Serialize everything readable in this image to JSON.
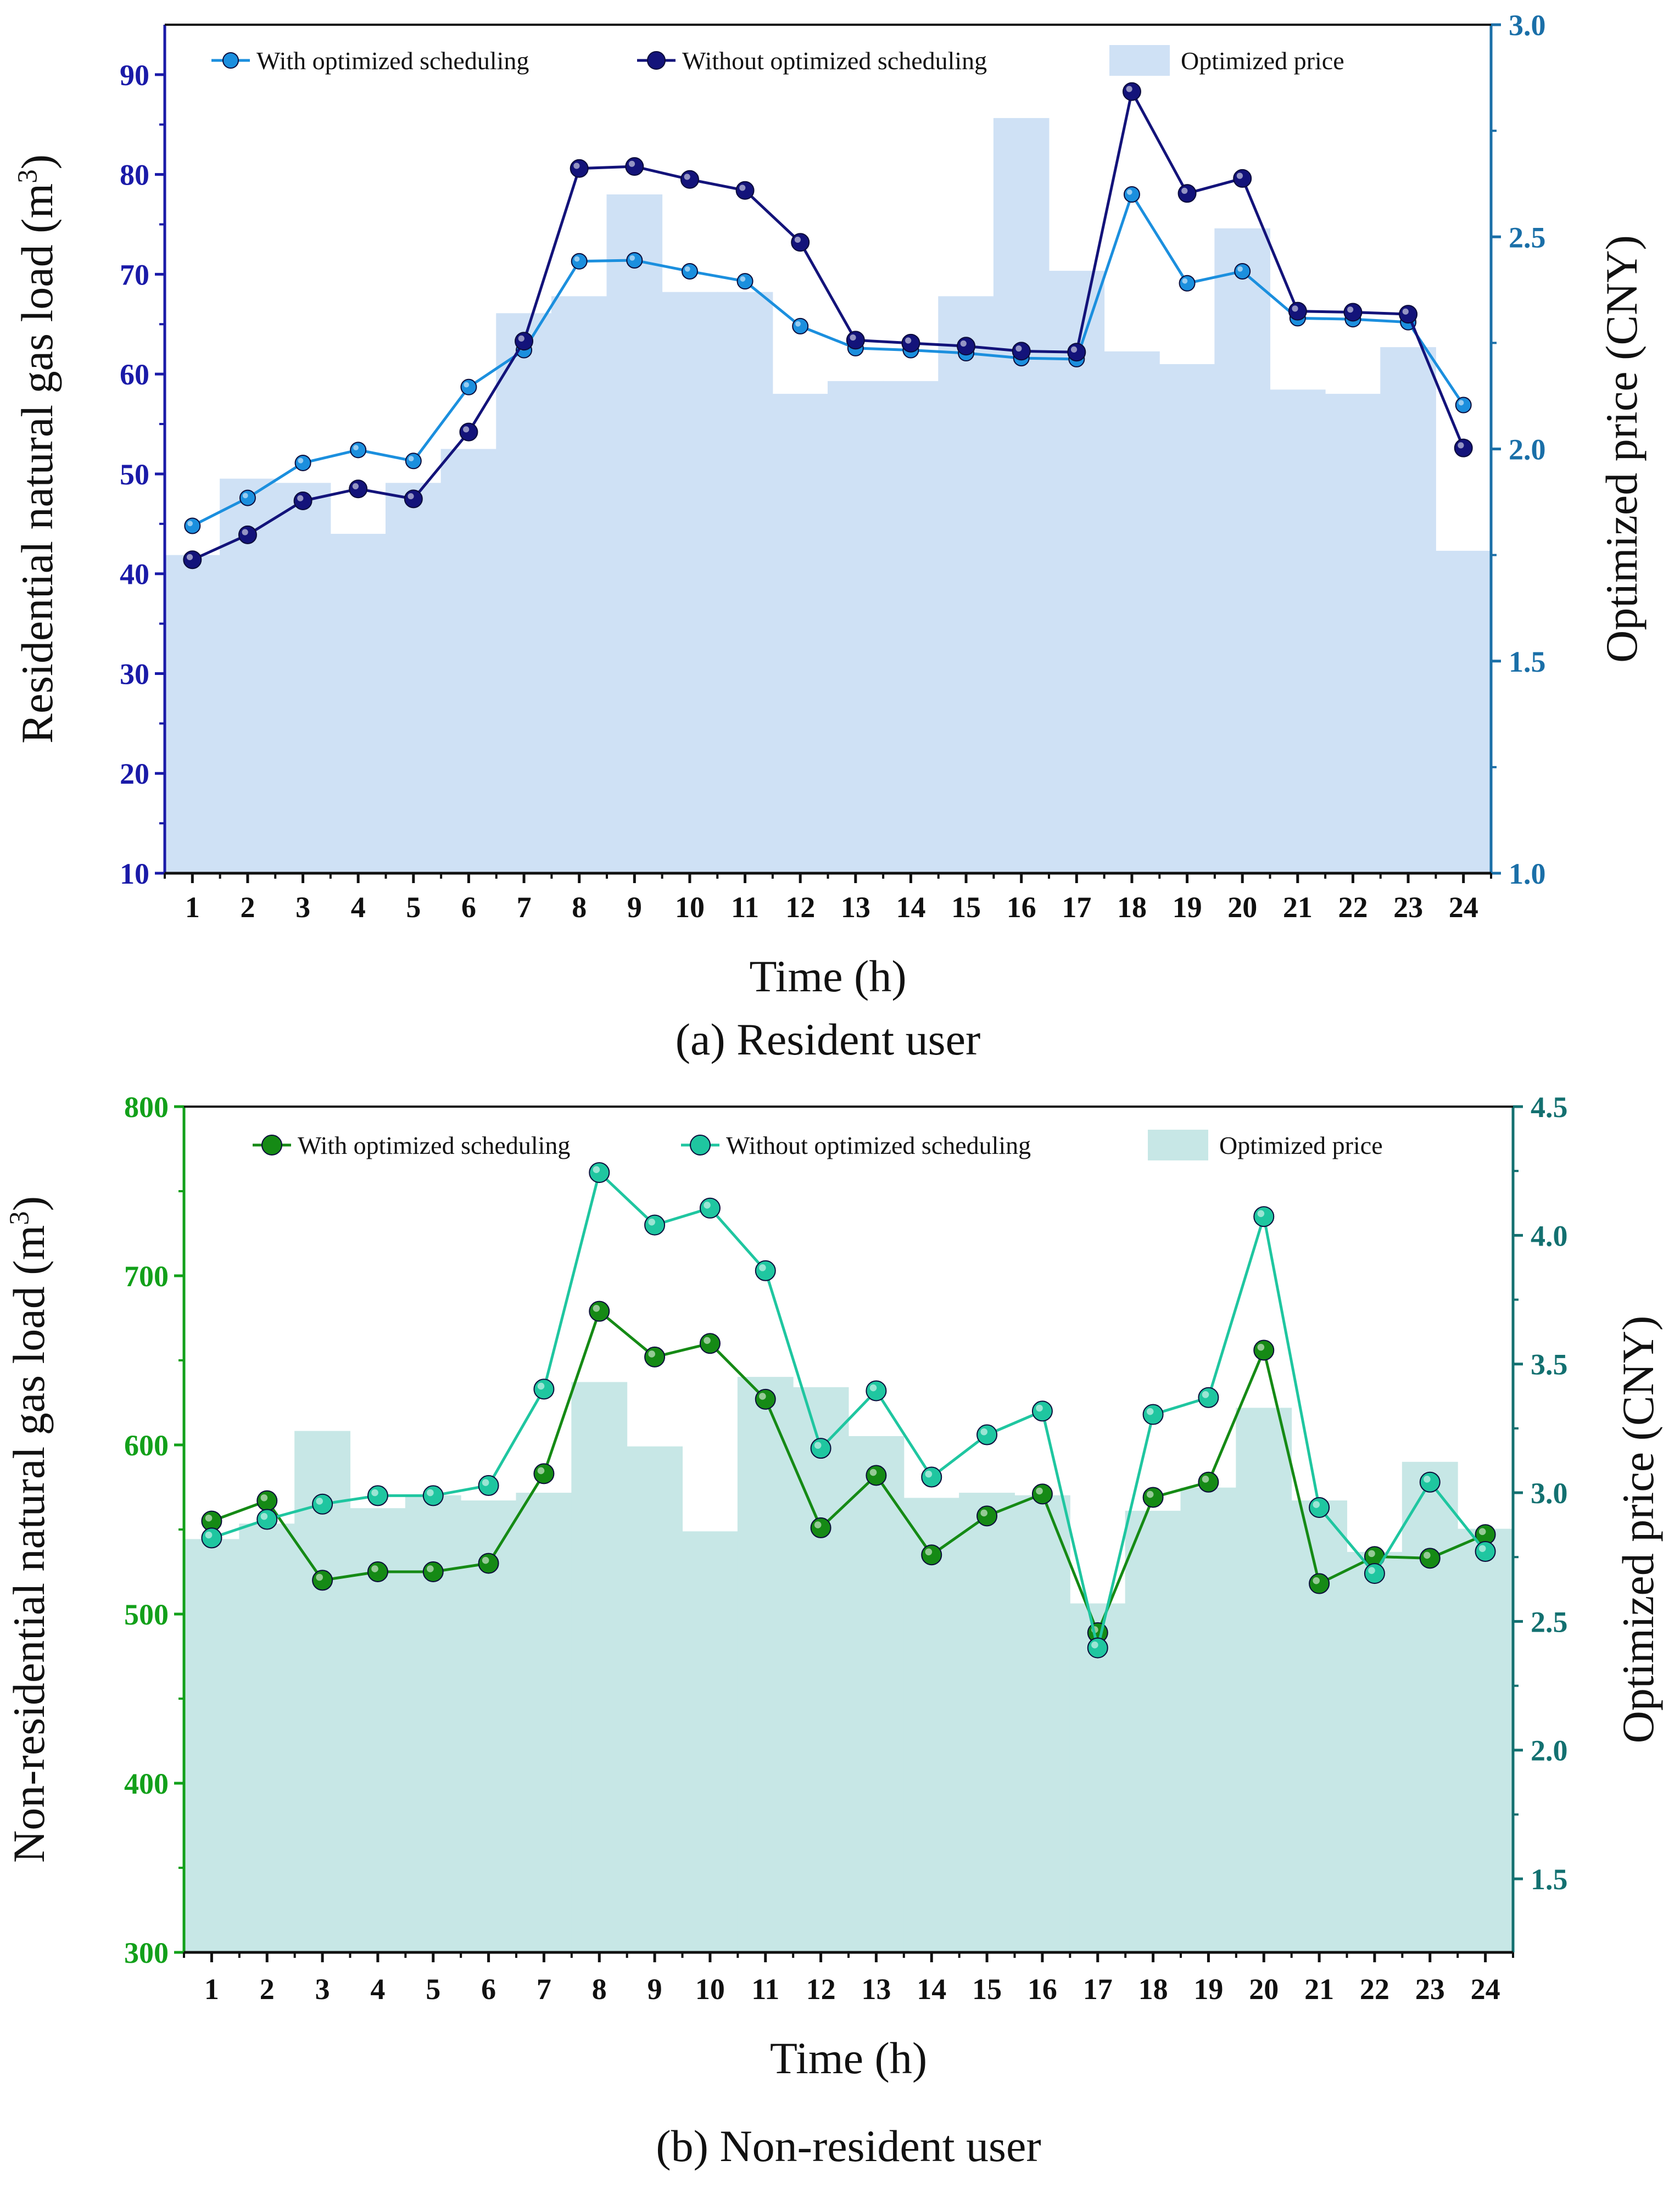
{
  "charts": [
    {
      "id": "a",
      "chart_data": {
        "type": "line",
        "title": "(a) Resident user",
        "xlabel": "Time (h)",
        "ylabel_main": "Residential natural gas load (m",
        "ylabel_sup": "3",
        "ylabel_close": ")",
        "y2label": "Optimized price (CNY)",
        "categories": [
          "1",
          "2",
          "3",
          "4",
          "5",
          "6",
          "7",
          "8",
          "9",
          "10",
          "11",
          "12",
          "13",
          "14",
          "15",
          "16",
          "17",
          "18",
          "19",
          "20",
          "21",
          "22",
          "23",
          "24"
        ],
        "ylim": [
          10,
          95
        ],
        "y2lim": [
          1.0,
          3.0
        ],
        "yticks": [
          10,
          20,
          30,
          40,
          50,
          60,
          70,
          80,
          90
        ],
        "y2ticks": [
          1.0,
          1.5,
          2.0,
          2.5,
          3.0
        ],
        "y2tick_labels": [
          "1.0",
          "1.5",
          "2.0",
          "2.5",
          "3.0"
        ],
        "axis_color": "#1a1aa8",
        "axis2_color": "#1a6fa8",
        "price_color": "#cfe1f5",
        "series": [
          {
            "name": "With optimized scheduling",
            "color": "#1b8fde",
            "marker_r": 14,
            "values": [
              44.8,
              47.6,
              51.1,
              52.4,
              51.3,
              58.7,
              62.4,
              71.3,
              71.4,
              70.3,
              69.3,
              64.8,
              62.6,
              62.4,
              62.1,
              61.6,
              61.5,
              78.0,
              69.1,
              70.3,
              65.6,
              65.5,
              65.2,
              56.9
            ]
          },
          {
            "name": "Without optimized scheduling",
            "color": "#13137a",
            "marker_r": 16,
            "values": [
              41.4,
              43.9,
              47.3,
              48.5,
              47.5,
              54.2,
              63.3,
              80.6,
              80.8,
              79.5,
              78.4,
              73.2,
              63.4,
              63.1,
              62.8,
              62.3,
              62.2,
              88.3,
              78.1,
              79.6,
              66.3,
              66.2,
              66.0,
              52.6
            ]
          }
        ],
        "price": {
          "name": "Optimized price",
          "values": [
            1.75,
            1.93,
            1.92,
            1.8,
            1.92,
            2.0,
            2.32,
            2.36,
            2.6,
            2.37,
            2.37,
            2.13,
            2.16,
            2.16,
            2.36,
            2.78,
            2.42,
            2.23,
            2.2,
            2.52,
            2.14,
            2.13,
            2.24,
            1.76
          ]
        }
      }
    },
    {
      "id": "b",
      "chart_data": {
        "type": "line",
        "title": "(b) Non-resident user",
        "xlabel": "Time (h)",
        "ylabel_main": "Non-residential natural gas load (m",
        "ylabel_sup": "3",
        "ylabel_close": ")",
        "y2label": "Optimized price (CNY)",
        "categories": [
          "1",
          "2",
          "3",
          "4",
          "5",
          "6",
          "7",
          "8",
          "9",
          "10",
          "11",
          "12",
          "13",
          "14",
          "15",
          "16",
          "17",
          "18",
          "19",
          "20",
          "21",
          "22",
          "23",
          "24"
        ],
        "ylim": [
          300,
          800
        ],
        "y2lim": [
          1.2143,
          4.5
        ],
        "yticks": [
          300,
          400,
          500,
          600,
          700,
          800
        ],
        "y2ticks": [
          1.5,
          2.0,
          2.5,
          3.0,
          3.5,
          4.0,
          4.5
        ],
        "y2tick_labels": [
          "1.5",
          "2.0",
          "2.5",
          "3.0",
          "3.5",
          "4.0",
          "4.5"
        ],
        "axis_color": "#12a01a",
        "axis2_color": "#137070",
        "price_color": "#c7e7e6",
        "series": [
          {
            "name": "With optimized scheduling",
            "color": "#158a15",
            "marker_r": 18,
            "values": [
              555,
              567,
              520,
              525,
              525,
              530,
              583,
              679,
              652,
              660,
              627,
              551,
              582,
              535,
              558,
              571,
              489,
              569,
              578,
              656,
              518,
              534,
              533,
              547
            ]
          },
          {
            "name": "Without optimized scheduling",
            "color": "#1fc6a0",
            "marker_r": 18,
            "values": [
              545,
              556,
              565,
              570,
              570,
              576,
              633,
              761,
              730,
              740,
              703,
              598,
              632,
              581,
              606,
              620,
              480,
              618,
              628,
              735,
              563,
              524,
              578,
              537
            ]
          }
        ],
        "price": {
          "name": "Optimized price",
          "values": [
            2.82,
            2.88,
            3.24,
            2.94,
            2.99,
            2.97,
            3.0,
            3.43,
            3.18,
            2.85,
            3.45,
            3.41,
            3.22,
            2.98,
            3.0,
            2.99,
            2.57,
            2.93,
            3.02,
            3.33,
            2.97,
            2.77,
            3.12,
            2.86
          ]
        }
      }
    }
  ]
}
